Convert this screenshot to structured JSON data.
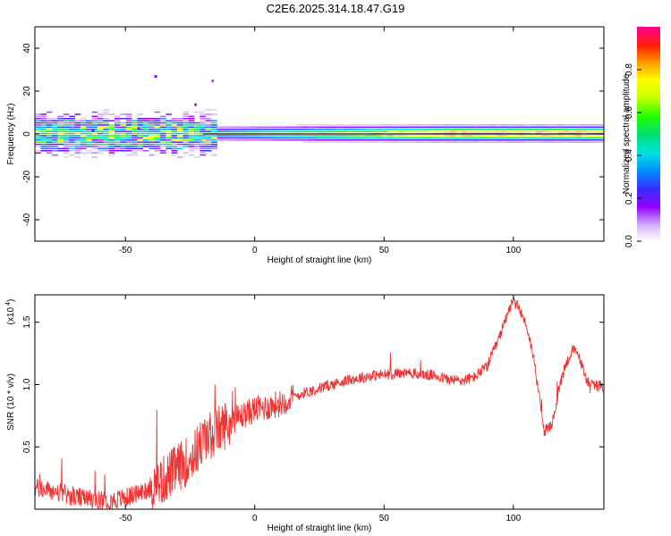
{
  "title": "C2E6.2025.314.18.47.G19",
  "chart_data": [
    {
      "type": "heatmap",
      "name": "spectrogram",
      "xlabel": "Height of straight line (km)",
      "ylabel": "Frequency (Hz)",
      "xlim": [
        -85,
        135
      ],
      "ylim": [
        -50,
        50
      ],
      "xticks": [
        -50,
        0,
        50,
        100
      ],
      "yticks": [
        -40,
        -20,
        0,
        20,
        40
      ],
      "colorbar": {
        "label": "Normalized spectral amplitude",
        "range": [
          0,
          1
        ],
        "ticks": [
          0.0,
          0.2,
          0.4,
          0.6,
          0.8
        ]
      },
      "ridge_frequency_hz": 0
    },
    {
      "type": "line",
      "name": "snr",
      "xlabel": "Height of straight line (km)",
      "ylabel": "SNR (10 * v/v)",
      "scale_label": "(x10",
      "scale_exponent": "4",
      "xlim": [
        -85,
        135
      ],
      "ylim": [
        0.0,
        1.72
      ],
      "xticks": [
        -50,
        0,
        50,
        100
      ],
      "yticks": [
        0.5,
        1.0,
        1.5
      ],
      "series": [
        {
          "name": "SNR",
          "color": "#ee3333",
          "x": [
            -85,
            -80,
            -75,
            -70,
            -65,
            -60,
            -55,
            -50,
            -45,
            -40,
            -35,
            -30,
            -25,
            -20,
            -15,
            -10,
            -5,
            0,
            5,
            10,
            15,
            20,
            25,
            30,
            35,
            40,
            45,
            50,
            55,
            60,
            65,
            70,
            75,
            80,
            85,
            90,
            95,
            98,
            100,
            102,
            105,
            108,
            110,
            112,
            115,
            118,
            120,
            123,
            125,
            128,
            130,
            135
          ],
          "values": [
            0.17,
            0.15,
            0.13,
            0.1,
            0.08,
            0.07,
            0.07,
            0.09,
            0.13,
            0.17,
            0.24,
            0.33,
            0.4,
            0.55,
            0.62,
            0.7,
            0.75,
            0.8,
            0.82,
            0.85,
            0.9,
            0.94,
            0.97,
            1.0,
            1.03,
            1.05,
            1.07,
            1.08,
            1.09,
            1.09,
            1.08,
            1.07,
            1.04,
            1.03,
            1.06,
            1.15,
            1.4,
            1.6,
            1.66,
            1.62,
            1.48,
            1.2,
            0.9,
            0.62,
            0.68,
            1.0,
            1.15,
            1.28,
            1.25,
            1.05,
            1.0,
            0.98
          ]
        }
      ]
    }
  ]
}
